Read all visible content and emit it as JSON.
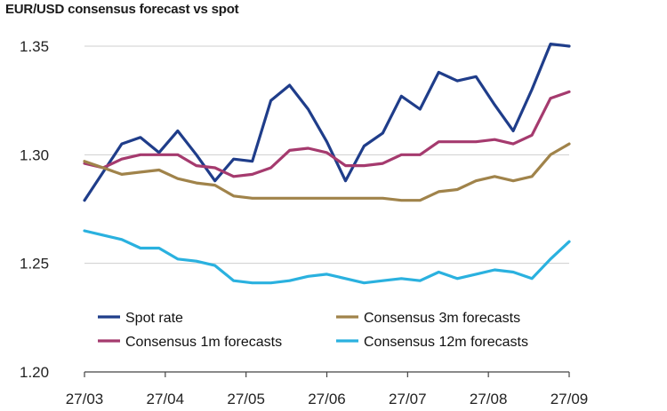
{
  "chart_data": {
    "type": "line",
    "title": "EUR/USD consensus forecast vs spot",
    "xlabel": "",
    "ylabel": "",
    "ylim": [
      1.2,
      1.35
    ],
    "yticks": [
      "1.35",
      "1.30",
      "1.25",
      "1.20"
    ],
    "xticks": [
      "27/03",
      "27/04",
      "27/05",
      "27/06",
      "27/07",
      "27/08",
      "27/09"
    ],
    "grid": true,
    "legend_position": "bottom-inside",
    "series": [
      {
        "name": "Spot rate",
        "color": "#1f3d8a",
        "values": [
          1.279,
          1.292,
          1.305,
          1.308,
          1.301,
          1.311,
          1.3,
          1.288,
          1.298,
          1.297,
          1.325,
          1.332,
          1.321,
          1.306,
          1.288,
          1.304,
          1.31,
          1.327,
          1.321,
          1.338,
          1.334,
          1.336,
          1.323,
          1.311,
          1.33,
          1.351,
          1.35
        ]
      },
      {
        "name": "Consensus 1m forecasts",
        "color": "#a53a6e",
        "values": [
          1.296,
          1.294,
          1.298,
          1.3,
          1.3,
          1.3,
          1.295,
          1.294,
          1.29,
          1.291,
          1.294,
          1.302,
          1.303,
          1.301,
          1.295,
          1.295,
          1.296,
          1.3,
          1.3,
          1.306,
          1.306,
          1.306,
          1.307,
          1.305,
          1.309,
          1.326,
          1.329
        ]
      },
      {
        "name": "Consensus 3m forecasts",
        "color": "#a0834a",
        "values": [
          1.297,
          1.294,
          1.291,
          1.292,
          1.293,
          1.289,
          1.287,
          1.286,
          1.281,
          1.28,
          1.28,
          1.28,
          1.28,
          1.28,
          1.28,
          1.28,
          1.28,
          1.279,
          1.279,
          1.283,
          1.284,
          1.288,
          1.29,
          1.288,
          1.29,
          1.3,
          1.305
        ]
      },
      {
        "name": "Consensus 12m forecasts",
        "color": "#2ab1df",
        "values": [
          1.265,
          1.263,
          1.261,
          1.257,
          1.257,
          1.252,
          1.251,
          1.249,
          1.242,
          1.241,
          1.241,
          1.242,
          1.244,
          1.245,
          1.243,
          1.241,
          1.242,
          1.243,
          1.242,
          1.246,
          1.243,
          1.245,
          1.247,
          1.246,
          1.243,
          1.252,
          1.26
        ]
      }
    ]
  }
}
